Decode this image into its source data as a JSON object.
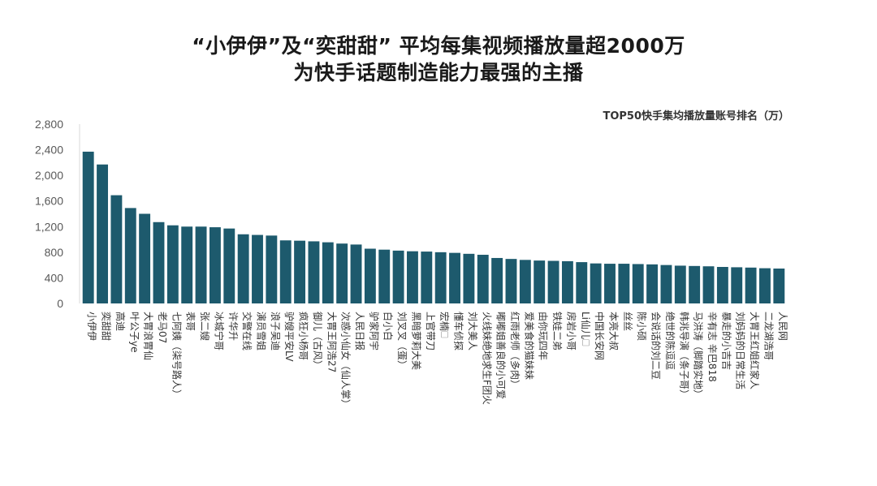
{
  "title": {
    "line1": "“小伊伊”及“奕甜甜” 平均每集视频播放量超2000万",
    "line2": "为快手话题制造能力最强的主播"
  },
  "chart_caption": "TOP50快手集均播放量账号排名（万）",
  "chart_data": {
    "type": "bar",
    "title": "TOP50快手集均播放量账号排名（万）",
    "ylim": [
      0,
      2800
    ],
    "yticks": [
      "0",
      "400",
      "800",
      "1,200",
      "1,600",
      "2,000",
      "2,400",
      "2,800"
    ],
    "ytick_values": [
      0,
      400,
      800,
      1200,
      1600,
      2000,
      2400,
      2800
    ],
    "color": "#1d5a6d",
    "grid": false,
    "categories": [
      "小伊伊",
      "奕甜甜",
      "高迪",
      "叶公子ye",
      "大胃浪胃仙",
      "老马07",
      "七阿姨（柒号路人）",
      "表哥",
      "张二嫂",
      "冰城宁哥",
      "许华升",
      "交警在线",
      "演员雪姐",
      "浪子吴迪",
      "驴嫂平安LV",
      "疯狂小杨哥",
      "御儿（古风）",
      "大胃王阿浩27",
      "次惑小仙女（仙人掌）",
      "人民日报",
      "驴家阿宇",
      "白小白",
      "刘叉叉（蛋）",
      "黑暗萝莉大美",
      "上官带刀",
      "宏楠🗆",
      "懂车侦探",
      "刘大美人",
      "火线妹绝地求生F团火",
      "嘟嘟姐善良的小可爱",
      "红雨老师（多肉）",
      "爱美食的猫妹妹",
      "由你玩四年",
      "铁娃二弟",
      "房岩小哥",
      "Li仙儿🗆",
      "中国长安网",
      "本亮大叔",
      "丝丝",
      "陈小硕",
      "会说话的刘二豆",
      "绝世的陈逗逗",
      "韩兆导演（条子哥）",
      "马洪涛（脚踏实地）",
      "辛有志 辛巴818",
      "暴走的小吉吉",
      "刘妈妈的日常生活",
      "大胃王红姐红家人",
      "二龙湖浩哥",
      "人民网"
    ],
    "values": [
      2370,
      2170,
      1690,
      1490,
      1400,
      1270,
      1220,
      1200,
      1200,
      1190,
      1170,
      1080,
      1070,
      1060,
      985,
      980,
      970,
      955,
      935,
      920,
      855,
      840,
      825,
      815,
      810,
      800,
      790,
      775,
      760,
      710,
      695,
      680,
      670,
      665,
      660,
      645,
      625,
      620,
      620,
      615,
      610,
      600,
      590,
      585,
      580,
      570,
      565,
      560,
      550,
      545
    ]
  }
}
